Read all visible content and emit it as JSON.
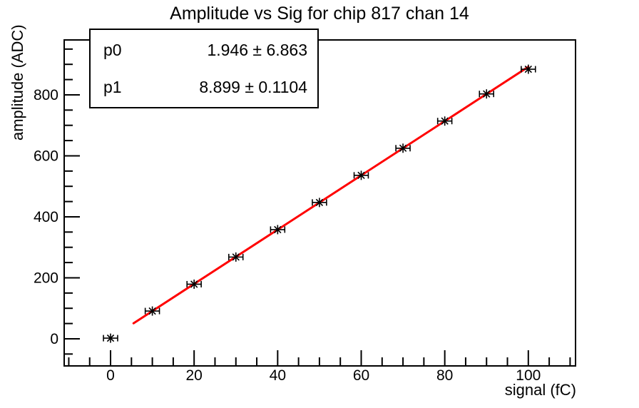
{
  "chart_data": {
    "type": "scatter",
    "title": "Amplitude vs Sig for chip 817 chan 14",
    "xlabel": "signal (fC)",
    "ylabel": "amplitude (ADC)",
    "x": [
      0,
      10,
      20,
      30,
      40,
      50,
      60,
      70,
      80,
      90,
      100
    ],
    "y": [
      2,
      91,
      179,
      268,
      358,
      447,
      536,
      625,
      714,
      803,
      884
    ],
    "x_error": 1.7,
    "x_ticks": [
      0,
      20,
      40,
      60,
      80,
      100
    ],
    "y_ticks": [
      0,
      200,
      400,
      600,
      800
    ],
    "x_minor_step": 5,
    "y_minor_step": 50,
    "xlim": [
      -11.1,
      111.3
    ],
    "ylim": [
      -89,
      980
    ],
    "grid": false,
    "legend_position": "none",
    "marker": "asterisk-with-x-error-bars",
    "marker_color": "#000000",
    "axis_color": "#000000",
    "background_color": "#ffffff",
    "fit": {
      "p0": 1.946,
      "p1": 8.899,
      "x_range": [
        5.5,
        100
      ],
      "color": "#ff0000"
    }
  },
  "stats_box": {
    "rows": [
      {
        "param": "p0",
        "value": "1.946 ± 6.863"
      },
      {
        "param": "p1",
        "value": "8.899 ± 0.1104"
      }
    ]
  }
}
